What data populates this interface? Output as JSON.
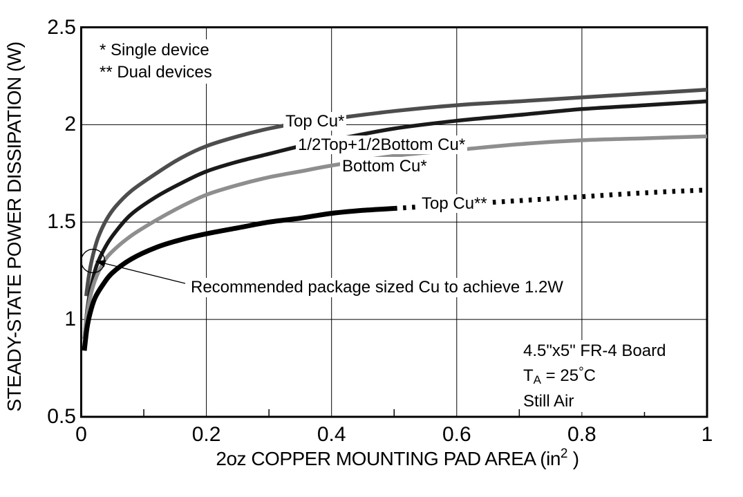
{
  "chart_data": {
    "type": "line",
    "title": "",
    "xlabel": {
      "main": "2oz COPPER MOUNTING PAD AREA (in",
      "sup": "2",
      "end": " )"
    },
    "ylabel": "STEADY-STATE POWER DISSIPATION (W)",
    "xlim": [
      0,
      1
    ],
    "ylim": [
      0.5,
      2.5
    ],
    "grid": "on",
    "x_major_ticks": [
      {
        "v": 0,
        "label": "0"
      },
      {
        "v": 0.2,
        "label": "0.2"
      },
      {
        "v": 0.4,
        "label": "0.4"
      },
      {
        "v": 0.6,
        "label": "0.6"
      },
      {
        "v": 0.8,
        "label": "0.8"
      },
      {
        "v": 1,
        "label": "1"
      }
    ],
    "x_minor_ticks": [
      0.1,
      0.3,
      0.5,
      0.7,
      0.9
    ],
    "y_ticks": [
      {
        "v": 2.5,
        "label": "2.5"
      },
      {
        "v": 2,
        "label": "2"
      },
      {
        "v": 1.5,
        "label": "1.5"
      },
      {
        "v": 1,
        "label": "1"
      },
      {
        "v": 0.5,
        "label": "0.5"
      }
    ],
    "grid_x": [
      0.2,
      0.4,
      0.6,
      0.8
    ],
    "grid_y": [
      1,
      1.5,
      2
    ],
    "series": [
      {
        "name": "Top Cu*",
        "color": "#4d4d4d",
        "width": 5.5,
        "style": "solid",
        "points": [
          [
            0.008,
            1.12
          ],
          [
            0.012,
            1.22
          ],
          [
            0.018,
            1.32
          ],
          [
            0.027,
            1.42
          ],
          [
            0.04,
            1.51
          ],
          [
            0.055,
            1.58
          ],
          [
            0.08,
            1.66
          ],
          [
            0.12,
            1.75
          ],
          [
            0.16,
            1.83
          ],
          [
            0.2,
            1.89
          ],
          [
            0.25,
            1.94
          ],
          [
            0.3,
            1.98
          ],
          [
            0.35,
            2.01
          ],
          [
            0.4,
            2.03
          ],
          [
            0.5,
            2.07
          ],
          [
            0.6,
            2.1
          ],
          [
            0.7,
            2.12
          ],
          [
            0.8,
            2.14
          ],
          [
            0.9,
            2.16
          ],
          [
            1.0,
            2.18
          ]
        ]
      },
      {
        "name": "1/2Top+1/2Bottom Cu*",
        "color": "#1a1a1a",
        "width": 5.5,
        "style": "solid",
        "points": [
          [
            0.006,
            0.93
          ],
          [
            0.01,
            1.06
          ],
          [
            0.016,
            1.17
          ],
          [
            0.025,
            1.28
          ],
          [
            0.04,
            1.38
          ],
          [
            0.055,
            1.45
          ],
          [
            0.08,
            1.54
          ],
          [
            0.12,
            1.63
          ],
          [
            0.16,
            1.7
          ],
          [
            0.2,
            1.76
          ],
          [
            0.25,
            1.81
          ],
          [
            0.3,
            1.85
          ],
          [
            0.35,
            1.89
          ],
          [
            0.4,
            1.92
          ],
          [
            0.5,
            1.98
          ],
          [
            0.6,
            2.02
          ],
          [
            0.7,
            2.05
          ],
          [
            0.8,
            2.08
          ],
          [
            0.9,
            2.1
          ],
          [
            1.0,
            2.12
          ]
        ]
      },
      {
        "name": "Bottom Cu*",
        "color": "#8e8e8e",
        "width": 5.5,
        "style": "solid",
        "points": [
          [
            0.005,
            0.9
          ],
          [
            0.009,
            1.02
          ],
          [
            0.014,
            1.11
          ],
          [
            0.022,
            1.2
          ],
          [
            0.035,
            1.29
          ],
          [
            0.05,
            1.35
          ],
          [
            0.08,
            1.43
          ],
          [
            0.12,
            1.51
          ],
          [
            0.16,
            1.58
          ],
          [
            0.2,
            1.64
          ],
          [
            0.25,
            1.69
          ],
          [
            0.3,
            1.73
          ],
          [
            0.35,
            1.76
          ],
          [
            0.4,
            1.79
          ],
          [
            0.5,
            1.84
          ],
          [
            0.6,
            1.87
          ],
          [
            0.7,
            1.9
          ],
          [
            0.8,
            1.92
          ],
          [
            0.9,
            1.93
          ],
          [
            1.0,
            1.94
          ]
        ]
      },
      {
        "name": "Top Cu** (solid segment)",
        "color": "#000000",
        "width": 7,
        "style": "solid",
        "points": [
          [
            0.005,
            0.84
          ],
          [
            0.009,
            0.95
          ],
          [
            0.014,
            1.03
          ],
          [
            0.022,
            1.11
          ],
          [
            0.035,
            1.18
          ],
          [
            0.05,
            1.24
          ],
          [
            0.08,
            1.31
          ],
          [
            0.12,
            1.37
          ],
          [
            0.16,
            1.41
          ],
          [
            0.2,
            1.44
          ],
          [
            0.25,
            1.47
          ],
          [
            0.3,
            1.5
          ],
          [
            0.35,
            1.52
          ],
          [
            0.4,
            1.545
          ],
          [
            0.45,
            1.56
          ],
          [
            0.5,
            1.57
          ]
        ]
      },
      {
        "name": "Top Cu** (dotted segment)",
        "color": "#000000",
        "width": 7,
        "style": "dotted",
        "dash": "4.5 8.5",
        "points": [
          [
            0.5,
            1.57
          ],
          [
            0.55,
            1.58
          ],
          [
            0.6,
            1.59
          ],
          [
            0.7,
            1.61
          ],
          [
            0.8,
            1.63
          ],
          [
            0.9,
            1.65
          ],
          [
            1.0,
            1.665
          ]
        ]
      }
    ],
    "curve_labels": {
      "top": "Top Cu*",
      "half": "1/2Top+1/2Bottom Cu*",
      "bottom": "Bottom Cu*",
      "dual": "Top Cu**"
    },
    "notes": {
      "single": "* Single device",
      "dual": "** Dual devices"
    },
    "callout": {
      "text": "Recommended package sized Cu to achieve 1.2W",
      "target": {
        "x": 0.0188,
        "p": 1.3
      },
      "circle_radius_px": 17
    },
    "conditions": {
      "board": "4.5\"x5\" FR-4 Board",
      "temp": {
        "pre": "T",
        "sub": "A",
        "mid": " = 25",
        "deg": "°",
        "end": "C"
      },
      "air": "Still Air"
    }
  }
}
